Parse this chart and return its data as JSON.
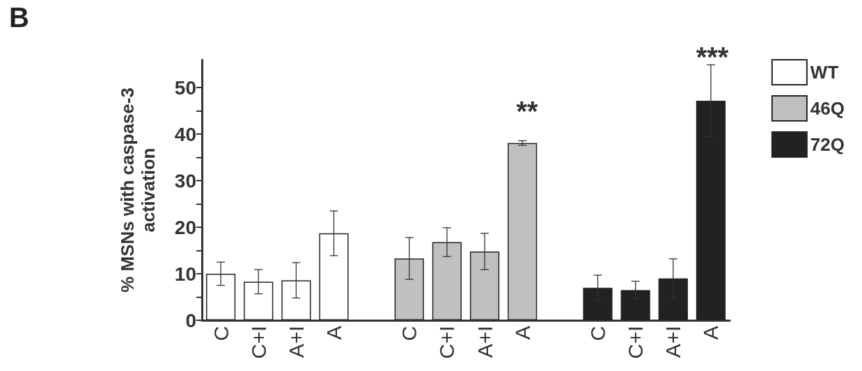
{
  "chart_data": {
    "type": "bar",
    "title": "B",
    "ylabel": "% MSNs with caspase-3\nactivation",
    "categories": [
      "C",
      "C+I",
      "A+I",
      "A",
      null,
      "C",
      "C+I",
      "A+I",
      "A",
      null,
      "C",
      "C+I",
      "A+I",
      "A"
    ],
    "series": [
      {
        "name": "WT",
        "color": "#ffffff",
        "values": [
          10,
          8.3,
          8.6,
          18.7,
          null,
          null,
          null,
          null,
          null,
          null,
          null,
          null,
          null,
          null
        ],
        "errors": [
          2.5,
          2.6,
          3.8,
          4.8,
          null,
          null,
          null,
          null,
          null,
          null,
          null,
          null,
          null,
          null
        ]
      },
      {
        "name": "46Q",
        "color": "#c0c0c0",
        "values": [
          null,
          null,
          null,
          null,
          null,
          13.3,
          16.8,
          14.8,
          38.1,
          null,
          null,
          null,
          null,
          null
        ],
        "errors": [
          null,
          null,
          null,
          null,
          null,
          4.5,
          3.1,
          3.9,
          0.5,
          null,
          null,
          null,
          null,
          null
        ]
      },
      {
        "name": "72Q",
        "color": "#222222",
        "values": [
          null,
          null,
          null,
          null,
          null,
          null,
          null,
          null,
          null,
          null,
          7.0,
          6.5,
          9.0,
          47.2
        ],
        "errors": [
          null,
          null,
          null,
          null,
          null,
          null,
          null,
          null,
          null,
          null,
          2.7,
          1.9,
          4.2,
          7.7
        ]
      }
    ],
    "ylim": [
      0,
      56
    ],
    "yticks": [
      0,
      {
        "value": 5,
        "label": null
      },
      10,
      {
        "value": 15,
        "label": null
      },
      20,
      {
        "value": 25,
        "label": null
      },
      30,
      {
        "value": 35,
        "label": null
      },
      40,
      {
        "value": 45,
        "label": null
      },
      50
    ],
    "annotations": [
      "**",
      "***"
    ],
    "legend": "top right",
    "grid": false
  }
}
